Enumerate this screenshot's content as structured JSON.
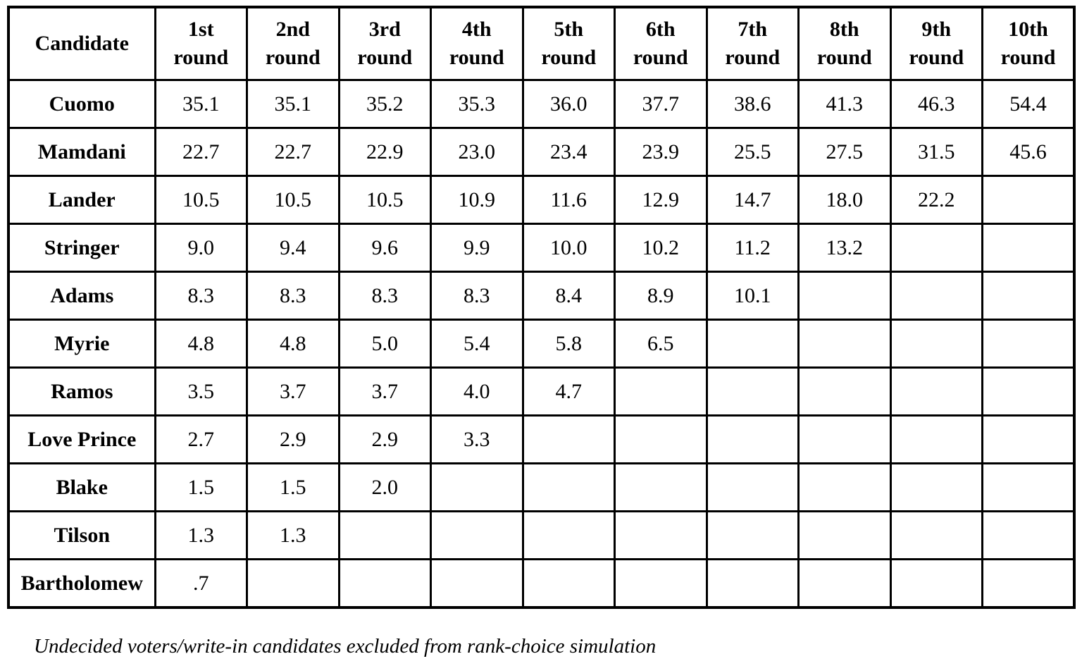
{
  "page": {
    "background_color": "#ffffff"
  },
  "table": {
    "colors": {
      "border": "#000000",
      "text": "#000000",
      "cell_background": "#ffffff"
    },
    "header": {
      "candidate_column_label": "Candidate",
      "round_columns": [
        {
          "ordinal": "1st",
          "word": "round"
        },
        {
          "ordinal": "2nd",
          "word": "round"
        },
        {
          "ordinal": "3rd",
          "word": "round"
        },
        {
          "ordinal": "4th",
          "word": "round"
        },
        {
          "ordinal": "5th",
          "word": "round"
        },
        {
          "ordinal": "6th",
          "word": "round"
        },
        {
          "ordinal": "7th",
          "word": "round"
        },
        {
          "ordinal": "8th",
          "word": "round"
        },
        {
          "ordinal": "9th",
          "word": "round"
        },
        {
          "ordinal": "10th",
          "word": "round"
        }
      ]
    },
    "rows": [
      {
        "candidate": "Cuomo",
        "values": [
          "35.1",
          "35.1",
          "35.2",
          "35.3",
          "36.0",
          "37.7",
          "38.6",
          "41.3",
          "46.3",
          "54.4"
        ]
      },
      {
        "candidate": "Mamdani",
        "values": [
          "22.7",
          "22.7",
          "22.9",
          "23.0",
          "23.4",
          "23.9",
          "25.5",
          "27.5",
          "31.5",
          "45.6"
        ]
      },
      {
        "candidate": "Lander",
        "values": [
          "10.5",
          "10.5",
          "10.5",
          "10.9",
          "11.6",
          "12.9",
          "14.7",
          "18.0",
          "22.2",
          ""
        ]
      },
      {
        "candidate": "Stringer",
        "values": [
          "9.0",
          "9.4",
          "9.6",
          "9.9",
          "10.0",
          "10.2",
          "11.2",
          "13.2",
          "",
          ""
        ]
      },
      {
        "candidate": "Adams",
        "values": [
          "8.3",
          "8.3",
          "8.3",
          "8.3",
          "8.4",
          "8.9",
          "10.1",
          "",
          "",
          ""
        ]
      },
      {
        "candidate": "Myrie",
        "values": [
          "4.8",
          "4.8",
          "5.0",
          "5.4",
          "5.8",
          "6.5",
          "",
          "",
          "",
          ""
        ]
      },
      {
        "candidate": "Ramos",
        "values": [
          "3.5",
          "3.7",
          "3.7",
          "4.0",
          "4.7",
          "",
          "",
          "",
          "",
          ""
        ]
      },
      {
        "candidate": "Love Prince",
        "values": [
          "2.7",
          "2.9",
          "2.9",
          "3.3",
          "",
          "",
          "",
          "",
          "",
          ""
        ]
      },
      {
        "candidate": "Blake",
        "values": [
          "1.5",
          "1.5",
          "2.0",
          "",
          "",
          "",
          "",
          "",
          "",
          ""
        ]
      },
      {
        "candidate": "Tilson",
        "values": [
          "1.3",
          "1.3",
          "",
          "",
          "",
          "",
          "",
          "",
          "",
          ""
        ]
      },
      {
        "candidate": "Bartholomew",
        "values": [
          ".7",
          "",
          "",
          "",
          "",
          "",
          "",
          "",
          "",
          ""
        ]
      }
    ],
    "footnote": "Undecided voters/write-in candidates excluded from rank-choice simulation"
  },
  "chart_data": {
    "type": "table",
    "title": "",
    "categories": [
      "1st round",
      "2nd round",
      "3rd round",
      "4th round",
      "5th round",
      "6th round",
      "7th round",
      "8th round",
      "9th round",
      "10th round"
    ],
    "series": [
      {
        "name": "Cuomo",
        "values": [
          35.1,
          35.1,
          35.2,
          35.3,
          36.0,
          37.7,
          38.6,
          41.3,
          46.3,
          54.4
        ]
      },
      {
        "name": "Mamdani",
        "values": [
          22.7,
          22.7,
          22.9,
          23.0,
          23.4,
          23.9,
          25.5,
          27.5,
          31.5,
          45.6
        ]
      },
      {
        "name": "Lander",
        "values": [
          10.5,
          10.5,
          10.5,
          10.9,
          11.6,
          12.9,
          14.7,
          18.0,
          22.2,
          null
        ]
      },
      {
        "name": "Stringer",
        "values": [
          9.0,
          9.4,
          9.6,
          9.9,
          10.0,
          10.2,
          11.2,
          13.2,
          null,
          null
        ]
      },
      {
        "name": "Adams",
        "values": [
          8.3,
          8.3,
          8.3,
          8.3,
          8.4,
          8.9,
          10.1,
          null,
          null,
          null
        ]
      },
      {
        "name": "Myrie",
        "values": [
          4.8,
          4.8,
          5.0,
          5.4,
          5.8,
          6.5,
          null,
          null,
          null,
          null
        ]
      },
      {
        "name": "Ramos",
        "values": [
          3.5,
          3.7,
          3.7,
          4.0,
          4.7,
          null,
          null,
          null,
          null,
          null
        ]
      },
      {
        "name": "Love Prince",
        "values": [
          2.7,
          2.9,
          2.9,
          3.3,
          null,
          null,
          null,
          null,
          null,
          null
        ]
      },
      {
        "name": "Blake",
        "values": [
          1.5,
          1.5,
          2.0,
          null,
          null,
          null,
          null,
          null,
          null,
          null
        ]
      },
      {
        "name": "Tilson",
        "values": [
          1.3,
          1.3,
          null,
          null,
          null,
          null,
          null,
          null,
          null,
          null
        ]
      },
      {
        "name": "Bartholomew",
        "values": [
          0.7,
          null,
          null,
          null,
          null,
          null,
          null,
          null,
          null,
          null
        ]
      }
    ],
    "annotations": [
      "Undecided voters/write-in candidates excluded from rank-choice simulation"
    ]
  }
}
